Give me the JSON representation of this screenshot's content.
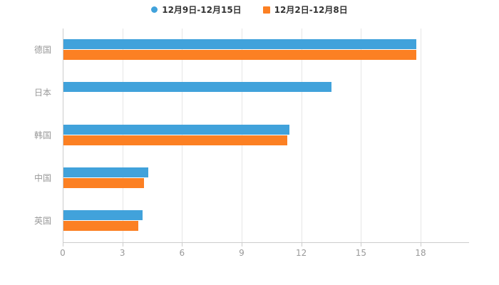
{
  "chart_data": {
    "type": "bar",
    "orientation": "horizontal",
    "title": "",
    "categories": [
      "德国",
      "日本",
      "韩国",
      "中国",
      "英国"
    ],
    "series": [
      {
        "name": "12月9日-12月15日",
        "color": "#41A2DB",
        "legend_marker": "circle",
        "values": [
          17.8,
          13.5,
          11.4,
          4.3,
          4.0
        ]
      },
      {
        "name": "12月2日-12月8日",
        "color": "#FC8023",
        "legend_marker": "square",
        "values": [
          17.8,
          null,
          11.3,
          4.1,
          3.8
        ]
      }
    ],
    "x_ticks": [
      "0",
      "3",
      "6",
      "9",
      "12",
      "15",
      "18"
    ],
    "xlim": [
      0,
      18
    ],
    "grid": true,
    "legend_position": "top",
    "colors": {
      "grid": "#E6E6E6",
      "axis": "#CCCCCC",
      "tick_label": "#999999",
      "category_label": "#999999",
      "legend_text": "#333333",
      "background": "#FFFFFF"
    }
  }
}
